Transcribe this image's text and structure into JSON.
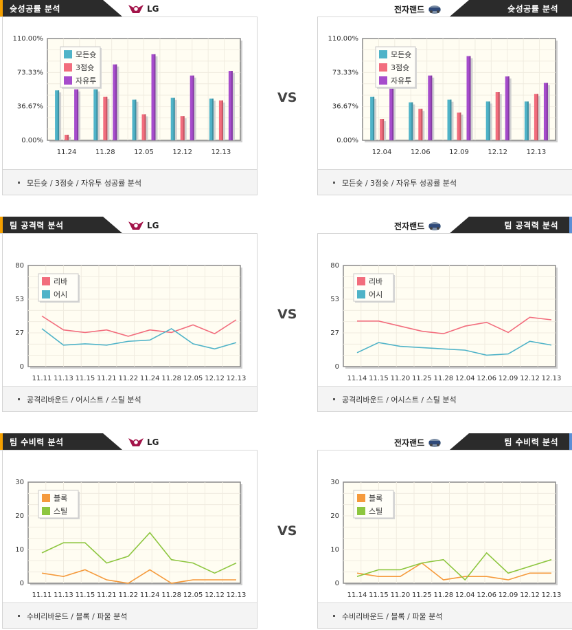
{
  "vs_label": "VS",
  "teams": {
    "left": "LG",
    "right": "전자랜드"
  },
  "sections": [
    {
      "header": "슛성공률 분석",
      "caption": "모든슛 / 3점슛 / 자유투 성공률 분석",
      "charts": {
        "left": {
          "type": "bar",
          "categories": [
            "11.24",
            "11.28",
            "12.05",
            "12.12",
            "12.13"
          ],
          "yticks": [
            "0.00%",
            "36.67%",
            "73.33%",
            "110.00%"
          ],
          "ylim": [
            0,
            110
          ],
          "series": [
            {
              "name": "모든슛",
              "color": "#4fb3c8",
              "values": [
                54,
                55,
                44,
                46,
                45
              ]
            },
            {
              "name": "3점슛",
              "color": "#f26d7d",
              "values": [
                6,
                47,
                28,
                26,
                43
              ]
            },
            {
              "name": "자유투",
              "color": "#a64ccc",
              "values": [
                55,
                82,
                93,
                70,
                75
              ]
            }
          ]
        },
        "right": {
          "type": "bar",
          "categories": [
            "12.04",
            "12.06",
            "12.09",
            "12.12",
            "12.13"
          ],
          "yticks": [
            "0.00%",
            "36.67%",
            "73.33%",
            "110.00%"
          ],
          "ylim": [
            0,
            110
          ],
          "series": [
            {
              "name": "모든슛",
              "color": "#4fb3c8",
              "values": [
                47,
                41,
                44,
                42,
                42
              ]
            },
            {
              "name": "3점슛",
              "color": "#f26d7d",
              "values": [
                23,
                34,
                30,
                52,
                50
              ]
            },
            {
              "name": "자유투",
              "color": "#a64ccc",
              "values": [
                63,
                70,
                91,
                69,
                62
              ]
            }
          ]
        }
      }
    },
    {
      "header": "팀 공격력 분석",
      "caption": "공격리바운드 / 어시스트 / 스틸 분석",
      "charts": {
        "left": {
          "type": "line",
          "categories": [
            "11.11",
            "11.13",
            "11.15",
            "11.21",
            "11.22",
            "11.24",
            "11.28",
            "12.05",
            "12.12",
            "12.13"
          ],
          "yticks": [
            "0",
            "27",
            "53",
            "80"
          ],
          "ylim": [
            0,
            80
          ],
          "series": [
            {
              "name": "리바",
              "color": "#f26d7d",
              "values": [
                40,
                29,
                27,
                29,
                24,
                29,
                27,
                33,
                26,
                37
              ]
            },
            {
              "name": "어시",
              "color": "#4fb3c8",
              "values": [
                30,
                17,
                18,
                17,
                20,
                21,
                30,
                18,
                14,
                19
              ]
            }
          ]
        },
        "right": {
          "type": "line",
          "categories": [
            "11.14",
            "11.15",
            "11.20",
            "11.25",
            "11.28",
            "12.04",
            "12.06",
            "12.09",
            "12.12",
            "12.13"
          ],
          "yticks": [
            "0",
            "27",
            "53",
            "80"
          ],
          "ylim": [
            0,
            80
          ],
          "series": [
            {
              "name": "리바",
              "color": "#f26d7d",
              "values": [
                36,
                36,
                32,
                28,
                26,
                32,
                35,
                27,
                39,
                37
              ]
            },
            {
              "name": "어시",
              "color": "#4fb3c8",
              "values": [
                11,
                19,
                16,
                15,
                14,
                13,
                9,
                10,
                20,
                17
              ]
            }
          ]
        }
      }
    },
    {
      "header": "팀 수비력 분석",
      "caption": "수비리바운드 / 블록 / 파울 분석",
      "charts": {
        "left": {
          "type": "line",
          "categories": [
            "11.11",
            "11.13",
            "11.15",
            "11.21",
            "11.22",
            "11.24",
            "11.28",
            "12.05",
            "12.12",
            "12.13"
          ],
          "yticks": [
            "0",
            "10",
            "20",
            "30"
          ],
          "ylim": [
            0,
            30
          ],
          "series": [
            {
              "name": "블록",
              "color": "#f59a3c",
              "values": [
                3,
                2,
                4,
                1,
                0,
                4,
                0,
                1,
                1,
                1
              ]
            },
            {
              "name": "스틸",
              "color": "#8dc63f",
              "values": [
                9,
                12,
                12,
                6,
                8,
                15,
                7,
                6,
                3,
                6
              ]
            }
          ]
        },
        "right": {
          "type": "line",
          "categories": [
            "11.14",
            "11.15",
            "11.20",
            "11.25",
            "11.28",
            "12.04",
            "12.06",
            "12.09",
            "12.12",
            "12.13"
          ],
          "yticks": [
            "0",
            "10",
            "20",
            "30"
          ],
          "ylim": [
            0,
            30
          ],
          "series": [
            {
              "name": "블록",
              "color": "#f59a3c",
              "values": [
                3,
                2,
                2,
                6,
                1,
                2,
                2,
                1,
                3,
                3
              ]
            },
            {
              "name": "스틸",
              "color": "#8dc63f",
              "values": [
                2,
                4,
                4,
                6,
                7,
                1,
                9,
                3,
                5,
                7
              ]
            }
          ]
        }
      }
    }
  ]
}
